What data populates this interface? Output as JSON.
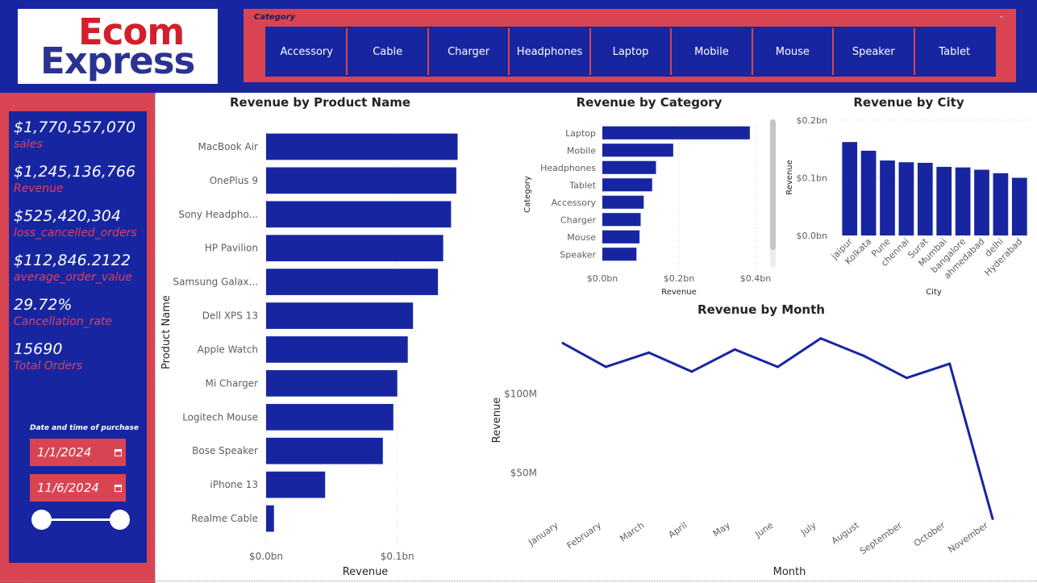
{
  "logo": {
    "line1": "Ecom",
    "line2": "Express"
  },
  "category_slicer": {
    "title": "Category",
    "items": [
      "Accessory",
      "Cable",
      "Charger",
      "Headphones",
      "Laptop",
      "Mobile",
      "Mouse",
      "Speaker",
      "Tablet"
    ]
  },
  "kpis": [
    {
      "value": "$1,770,557,070",
      "label": "sales"
    },
    {
      "value": "$1,245,136,766",
      "label": "Revenue"
    },
    {
      "value": "$525,420,304",
      "label": "loss_cancelled_orders"
    },
    {
      "value": "$112,846.2122",
      "label": "average_order_value"
    },
    {
      "value": "29.72%",
      "label": "Cancellation_rate"
    },
    {
      "value": "15690",
      "label": "Total Orders"
    }
  ],
  "date_filter": {
    "title": "Date and time of purchase",
    "start": "1/1/2024",
    "end": "11/6/2024",
    "range_start_fraction": 0,
    "range_end_fraction": 1
  },
  "colors": {
    "bar": "#1726a0",
    "accent": "#d94452",
    "brand_blue": "#1726a0"
  },
  "chart_data": [
    {
      "id": "product",
      "type": "bar",
      "orientation": "horizontal",
      "title": "Revenue by Product Name",
      "xlabel": "Revenue",
      "ylabel": "Product Name",
      "categories": [
        "MacBook Air",
        "OnePlus 9",
        "Sony Headpho...",
        "HP Pavilion",
        "Samsung Galax...",
        "Dell XPS 13",
        "Apple Watch",
        "Mi Charger",
        "Logitech Mouse",
        "Bose Speaker",
        "iPhone 13",
        "Realme Cable"
      ],
      "values": [
        0.146,
        0.145,
        0.141,
        0.135,
        0.131,
        0.112,
        0.108,
        0.1,
        0.097,
        0.089,
        0.045,
        0.006
      ],
      "unit": "bn",
      "xlim": [
        0,
        0.15
      ],
      "x_ticks": [
        {
          "value": 0,
          "label": "$0.0bn"
        },
        {
          "value": 0.1,
          "label": "$0.1bn"
        }
      ],
      "grid": true
    },
    {
      "id": "category",
      "type": "bar",
      "orientation": "horizontal",
      "title": "Revenue by Category",
      "xlabel": "Revenue",
      "ylabel": "Category",
      "categories": [
        "Laptop",
        "Mobile",
        "Headphones",
        "Tablet",
        "Accessory",
        "Charger",
        "Mouse",
        "Speaker"
      ],
      "values": [
        0.385,
        0.185,
        0.14,
        0.13,
        0.108,
        0.1,
        0.097,
        0.089
      ],
      "unit": "bn",
      "xlim": [
        0,
        0.4
      ],
      "x_ticks": [
        {
          "value": 0,
          "label": "$0.0bn"
        },
        {
          "value": 0.2,
          "label": "$0.2bn"
        },
        {
          "value": 0.4,
          "label": "$0.4bn"
        }
      ],
      "grid": true
    },
    {
      "id": "city",
      "type": "bar",
      "orientation": "vertical",
      "title": "Revenue by City",
      "xlabel": "City",
      "ylabel": "Revenue",
      "categories": [
        "jaipur",
        "Kolkata",
        "Pune",
        "chennai",
        "Surat",
        "Mumbai",
        "bangalore",
        "ahmedabad",
        "delhi",
        "Hyderabad"
      ],
      "values": [
        0.162,
        0.147,
        0.13,
        0.127,
        0.126,
        0.119,
        0.118,
        0.114,
        0.108,
        0.1
      ],
      "unit": "bn",
      "ylim": [
        0,
        0.2
      ],
      "y_ticks": [
        {
          "value": 0,
          "label": "$0.0bn"
        },
        {
          "value": 0.1,
          "label": "$0.1bn"
        },
        {
          "value": 0.2,
          "label": "$0.2bn"
        }
      ],
      "grid": true
    },
    {
      "id": "month",
      "type": "line",
      "title": "Revenue by Month",
      "xlabel": "Month",
      "ylabel": "Revenue",
      "categories": [
        "January",
        "February",
        "March",
        "April",
        "May",
        "June",
        "July",
        "August",
        "September",
        "October",
        "November"
      ],
      "values": [
        132,
        117,
        126,
        114,
        128,
        117,
        135,
        124,
        110,
        119,
        21
      ],
      "unit": "M",
      "ylim": [
        10,
        145
      ],
      "y_ticks": [
        {
          "value": 50,
          "label": "$50M"
        },
        {
          "value": 100,
          "label": "$100M"
        }
      ],
      "grid": false
    }
  ]
}
